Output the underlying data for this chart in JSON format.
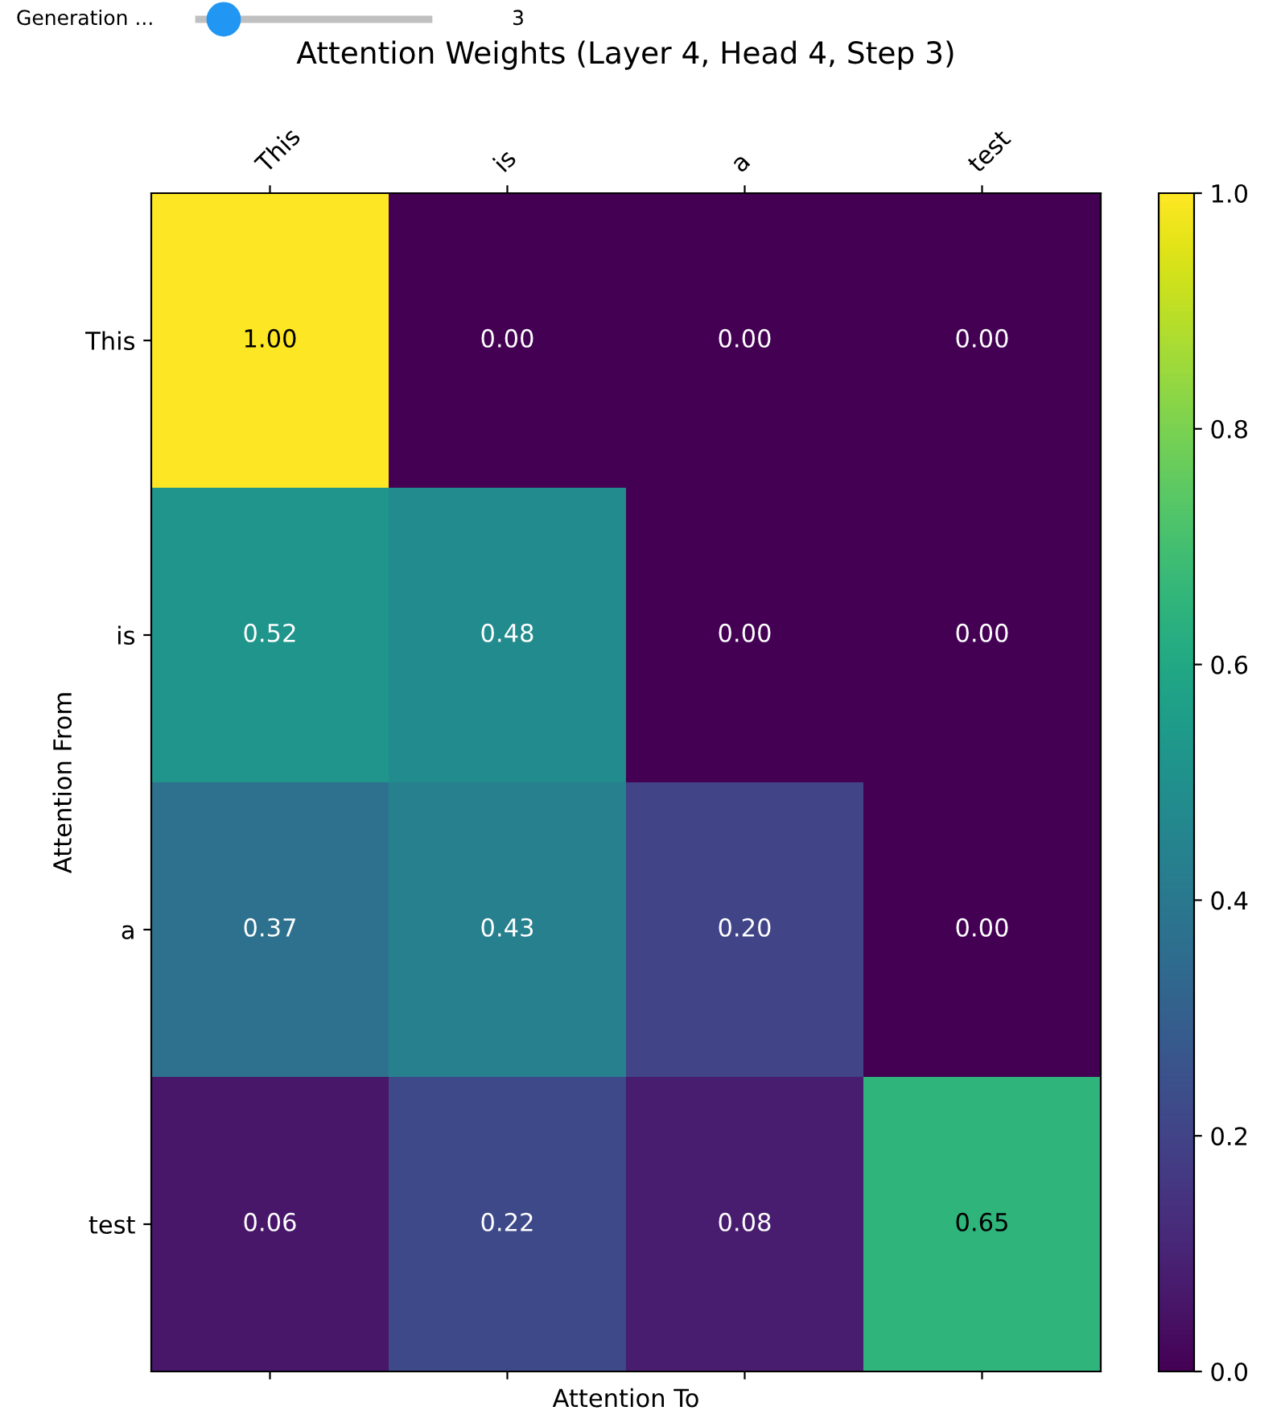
{
  "chart_data": {
    "type": "heatmap",
    "title": "Attention Weights (Layer 4, Head 4, Step 3)",
    "xlabel": "Attention To",
    "ylabel": "Attention From",
    "categories": [
      "This",
      "is",
      "a",
      "test"
    ],
    "y_categories": [
      "This",
      "is",
      "a",
      "test"
    ],
    "cells": [
      [
        1.0,
        0.0,
        0.0,
        0.0
      ],
      [
        0.52,
        0.48,
        0.0,
        0.0
      ],
      [
        0.37,
        0.43,
        0.2,
        0.0
      ],
      [
        0.06,
        0.22,
        0.08,
        0.65
      ]
    ],
    "cell_labels": [
      [
        "1.00",
        "0.00",
        "0.00",
        "0.00"
      ],
      [
        "0.52",
        "0.48",
        "0.00",
        "0.00"
      ],
      [
        "0.37",
        "0.43",
        "0.20",
        "0.00"
      ],
      [
        "0.06",
        "0.22",
        "0.08",
        "0.65"
      ]
    ],
    "clim": [
      0,
      1
    ],
    "cticks": [
      {
        "value": 0,
        "label": "0.0"
      },
      {
        "value": 0.2,
        "label": "0.2"
      },
      {
        "value": 0.4,
        "label": "0.4"
      },
      {
        "value": 0.6,
        "label": "0.6"
      },
      {
        "value": 0.8,
        "label": "0.8"
      },
      {
        "value": 1,
        "label": "1.0"
      }
    ],
    "annotations": [
      "Generation ...",
      "3"
    ]
  }
}
